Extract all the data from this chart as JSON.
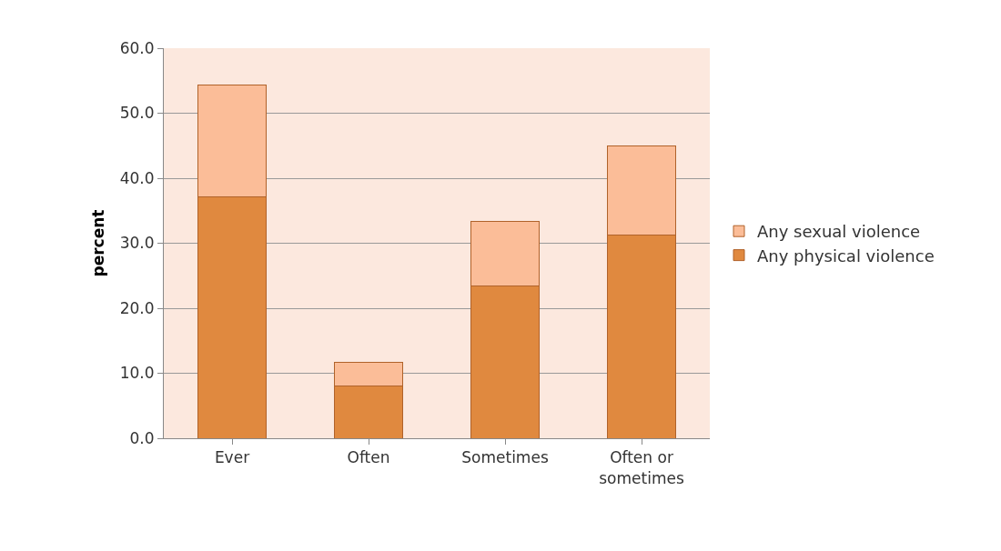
{
  "chart_data": {
    "type": "bar",
    "stacked": true,
    "ylabel": "percent",
    "categories": [
      "Ever",
      "Often",
      "Sometimes",
      "Often or sometimes"
    ],
    "series": [
      {
        "name": "Any physical violence",
        "color": "#e0893f",
        "values": [
          37.1,
          8.0,
          23.4,
          31.3
        ]
      },
      {
        "name": "Any sexual violence",
        "color": "#fbbd98",
        "values": [
          17.2,
          3.7,
          9.9,
          13.6
        ]
      }
    ],
    "ylim": [
      0,
      60
    ],
    "yticks": [
      {
        "value": 0,
        "label": "0.0"
      },
      {
        "value": 10,
        "label": "10.0"
      },
      {
        "value": 20,
        "label": "20.0"
      },
      {
        "value": 30,
        "label": "30.0"
      },
      {
        "value": 40,
        "label": "40.0"
      },
      {
        "value": 50,
        "label": "50.0"
      },
      {
        "value": 60,
        "label": "60.0"
      }
    ],
    "grid": "y",
    "legend": "right"
  }
}
